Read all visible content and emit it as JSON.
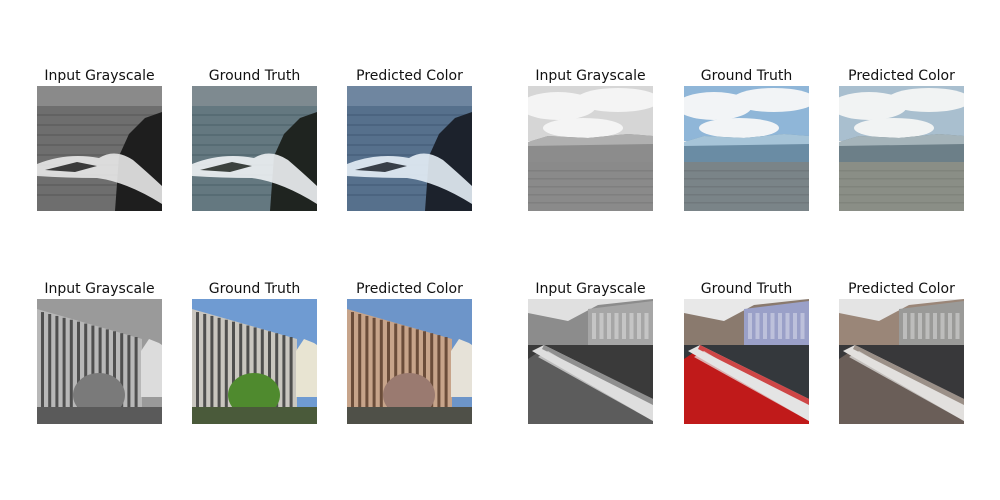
{
  "figure": {
    "samples": [
      {
        "id": "coast",
        "panels": [
          {
            "title": "Input Grayscale",
            "mode": "gray"
          },
          {
            "title": "Ground Truth",
            "mode": "truth"
          },
          {
            "title": "Predicted Color",
            "mode": "pred"
          }
        ]
      },
      {
        "id": "glacier",
        "panels": [
          {
            "title": "Input Grayscale",
            "mode": "gray"
          },
          {
            "title": "Ground Truth",
            "mode": "truth"
          },
          {
            "title": "Predicted Color",
            "mode": "pred"
          }
        ]
      },
      {
        "id": "building",
        "panels": [
          {
            "title": "Input Grayscale",
            "mode": "gray"
          },
          {
            "title": "Ground Truth",
            "mode": "truth"
          },
          {
            "title": "Predicted Color",
            "mode": "pred"
          }
        ]
      },
      {
        "id": "street",
        "panels": [
          {
            "title": "Input Grayscale",
            "mode": "gray"
          },
          {
            "title": "Ground Truth",
            "mode": "truth"
          },
          {
            "title": "Predicted Color",
            "mode": "pred"
          }
        ]
      }
    ]
  }
}
